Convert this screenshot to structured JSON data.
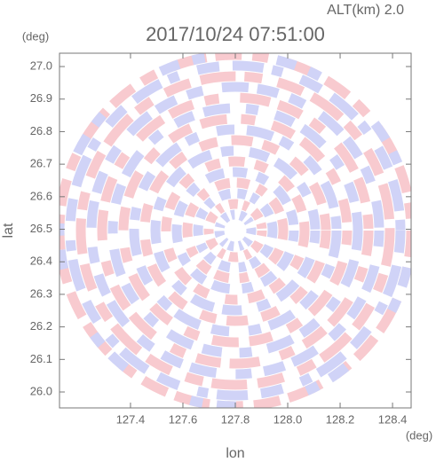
{
  "chart_data": {
    "type": "radar-ppi",
    "title": "2017/10/24 07:51:00",
    "annotation": "ALT(km) 2.0",
    "x_label": "lon",
    "x_unit": "(deg)",
    "y_label": "lat",
    "y_unit": "(deg)",
    "xlim": [
      127.129,
      128.471
    ],
    "ylim": [
      25.951,
      27.041
    ],
    "xticks": [
      127.4,
      127.6,
      127.8,
      {
        "value": 128.0,
        "label": "128.0"
      },
      128.2,
      128.4
    ],
    "yticks": [
      {
        "value": 26.0,
        "label": "26.0"
      },
      26.1,
      26.2,
      26.3,
      26.4,
      26.5,
      26.6,
      26.7,
      26.8,
      26.9,
      {
        "value": 27.0,
        "label": "27.0"
      }
    ]
  }
}
